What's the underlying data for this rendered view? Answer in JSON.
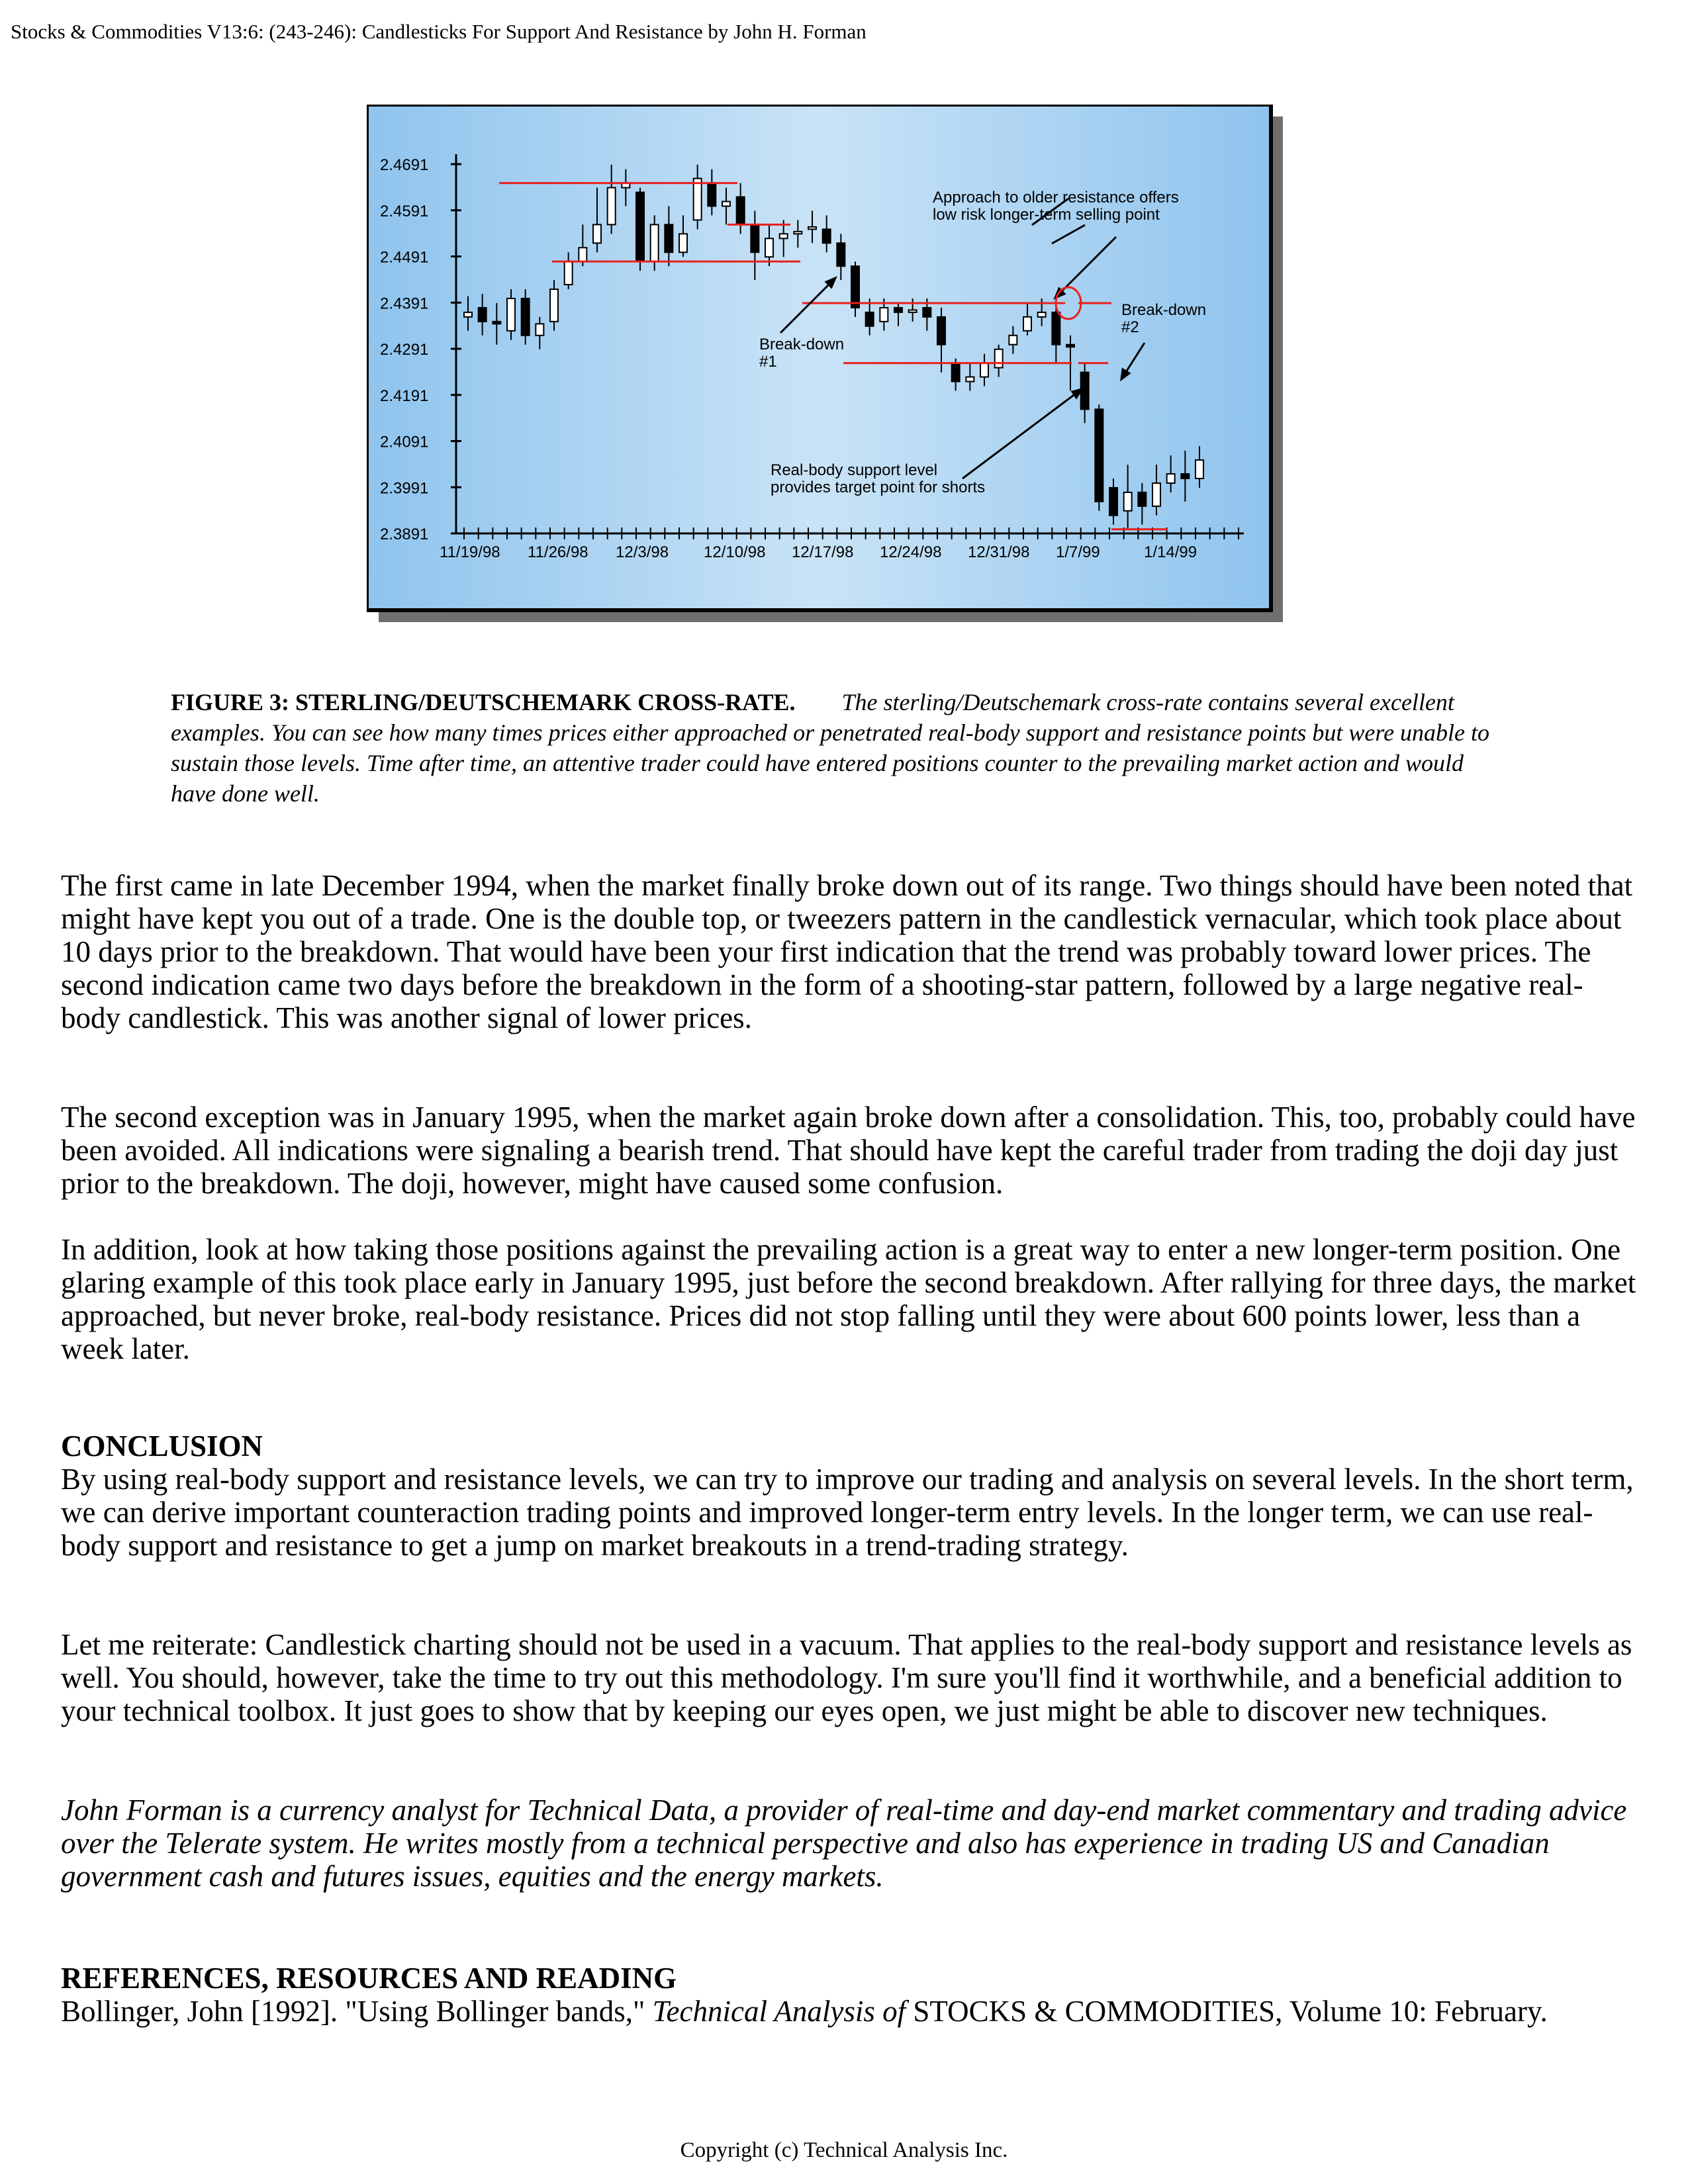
{
  "running_head": "Stocks & Commodities V13:6: (243-246): Candlesticks For Support And Resistance by John H. Forman",
  "figure": {
    "y_ticks": [
      "2.4691",
      "2.4591",
      "2.4491",
      "2.4391",
      "2.4291",
      "2.4191",
      "2.4091",
      "2.3991",
      "2.3891"
    ],
    "x_ticks": [
      "11/19/98",
      "11/26/98",
      "12/3/98",
      "12/10/98",
      "12/17/98",
      "12/24/98",
      "12/31/98",
      "1/7/99",
      "1/14/99"
    ],
    "annotation_approach_line1": "Approach to older resistance offers",
    "annotation_approach_line2": "low risk longer-term selling point",
    "annotation_breakdown1_line1": "Break-down",
    "annotation_breakdown1_line2": "#1",
    "annotation_breakdown2_line1": "Break-down",
    "annotation_breakdown2_line2": "#2",
    "annotation_support_line1": "Real-body support level",
    "annotation_support_line2": "provides target point for shorts",
    "colors": {
      "background": "#9fcdf0",
      "level_line": "#e8201c",
      "frame": "#000000",
      "shadow": "#6f6f6f"
    }
  },
  "caption": {
    "title": "FIGURE 3: STERLING/DEUTSCHEMARK CROSS-RATE.",
    "text": "The sterling/Deutschemark cross-rate contains several excellent examples. You can see how many times prices either approached or penetrated real-body support and resistance points but were unable to sustain those levels. Time after time, an attentive trader could have entered positions counter to the prevailing market action and would have done well."
  },
  "paragraphs": [
    "The first came in late December 1994, when the market finally broke down out of its range. Two things should have been noted that might have kept you out of a trade. One is the double top, or tweezers pattern in the candlestick vernacular, which took place about 10 days prior to the breakdown. That would have been your first indication that the trend was probably toward lower prices. The second indication came two days before the breakdown in the form of a shooting-star pattern, followed by a large negative real-body candlestick. This was another signal of lower prices.",
    "The second exception was in January 1995, when the market again broke down after a consolidation. This, too, probably could have been avoided. All indications were signaling a bearish trend. That should have kept the careful trader from trading the doji day just prior to the breakdown. The doji, however, might have caused some confusion.",
    "In addition, look at how taking those positions against the prevailing action is a great way to enter a new longer-term position. One glaring example of this took place early in January 1995, just before the second breakdown. After rallying for three days, the market approached, but never broke, real-body resistance. Prices did not stop falling until they were about 600 points lower, less than a week later."
  ],
  "conclusion": {
    "heading": "CONCLUSION",
    "paragraphs": [
      "By using real-body support and resistance levels, we can try to improve our trading and analysis on several levels. In the short term, we can derive important counteraction trading points and improved longer-term entry levels. In the longer term, we can use real-body support and resistance to get a jump on market breakouts in a trend-trading strategy.",
      "Let me reiterate: Candlestick charting should not be used in a vacuum. That applies to the real-body support and resistance levels as well. You should, however, take the time to try out this methodology. I'm sure you'll find it worthwhile, and a beneficial addition to your technical toolbox. It just goes to show that by keeping our eyes open, we just might be able to discover new techniques."
    ],
    "bio": "John Forman is a currency analyst for Technical Data, a provider of real-time and day-end market commentary and trading advice over the Telerate system. He writes mostly from a technical perspective and also has experience in trading US and Canadian government cash and futures issues, equities and the energy markets."
  },
  "references": {
    "heading": "REFERENCES, RESOURCES AND READING",
    "entry_prefix": "Bollinger, John [1992]. \"Using Bollinger bands,\" ",
    "entry_italic": "Technical Analysis of",
    "entry_suffix": " STOCKS & COMMODITIES, Volume 10: February."
  },
  "footer": "Copyright (c) Technical Analysis Inc."
}
